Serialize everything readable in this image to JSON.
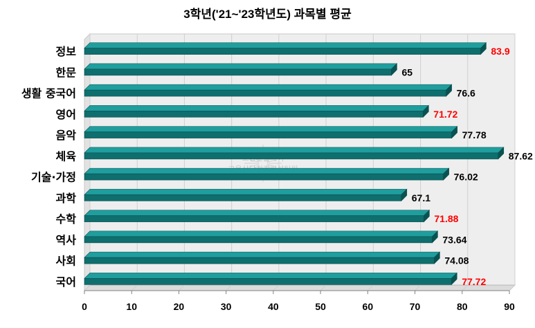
{
  "title": "3학년('21~'23학년도) 과목별 평균",
  "watermark": [
    "코앙센블레이",
    "교육상담심리컨설팅원"
  ],
  "colors": {
    "bar_top": "#1f9e9e",
    "bar_front": "#0f6e6e",
    "bar_side": "#0a5252",
    "highlight_label": "#ff0000",
    "normal_label": "#000000",
    "grid": "#d0d0d0",
    "wall": "#eeeeee"
  },
  "chart_data": {
    "type": "bar",
    "orientation": "horizontal",
    "title": "3학년('21~'23학년도) 과목별 평균",
    "categories": [
      "정보",
      "한문",
      "생활 중국어",
      "영어",
      "음악",
      "체육",
      "기술·가정",
      "과학",
      "수학",
      "역사",
      "사회",
      "국어"
    ],
    "values": [
      83.9,
      65,
      76.6,
      71.72,
      77.78,
      87.62,
      76.02,
      67.1,
      71.88,
      73.64,
      74.08,
      77.72
    ],
    "value_labels": [
      "83.9",
      "65",
      "76.6",
      "71.72",
      "77.78",
      "87.62",
      "76.02",
      "67.1",
      "71.88",
      "73.64",
      "74.08",
      "77.72"
    ],
    "highlighted": [
      true,
      false,
      false,
      true,
      false,
      false,
      false,
      false,
      true,
      false,
      false,
      true
    ],
    "xlim": [
      0,
      90
    ],
    "xticks": [
      0,
      10,
      20,
      30,
      40,
      50,
      60,
      70,
      80,
      90
    ],
    "xlabel": "",
    "ylabel": "",
    "grid": true,
    "legend": "none"
  }
}
